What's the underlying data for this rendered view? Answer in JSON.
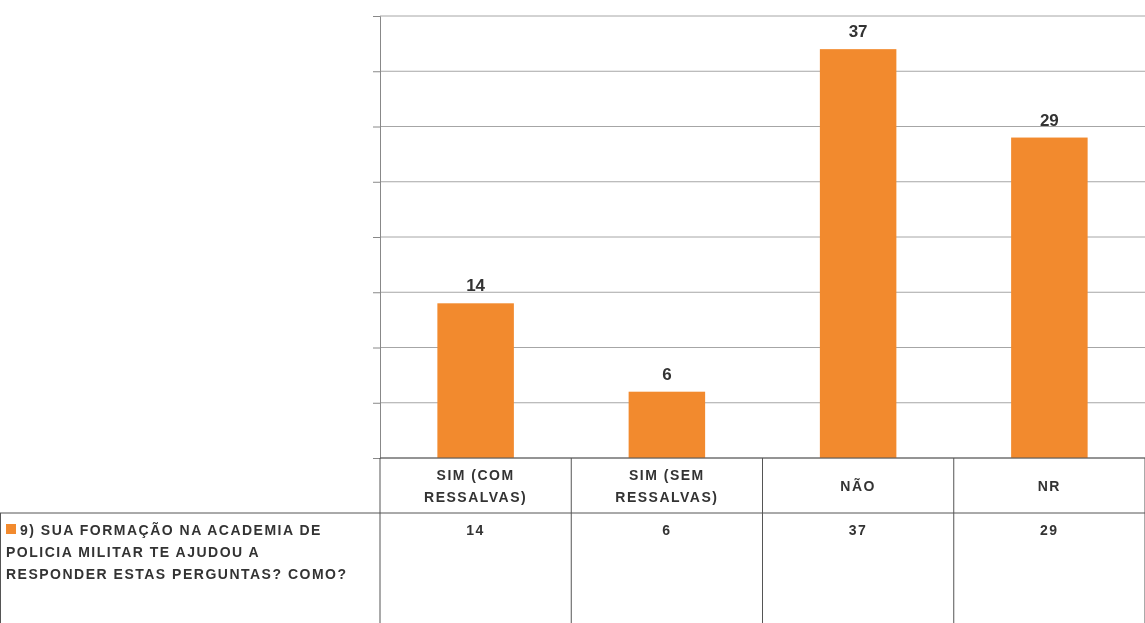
{
  "chart_data": {
    "type": "bar",
    "categories": [
      "SIM (COM RESSALVAS)",
      "SIM (SEM RESSALVAS)",
      "NÃO",
      "NR"
    ],
    "series": [
      {
        "name": "9) SUA FORMAÇÃO NA ACADEMIA DE POLICIA MILITAR TE AJUDOU A RESPONDER ESTAS PERGUNTAS? COMO?",
        "color": "#f28a2e",
        "values": [
          14,
          6,
          37,
          29
        ],
        "value_labels": [
          "14",
          "6",
          "37",
          "29"
        ]
      }
    ],
    "ylim": [
      0,
      40
    ],
    "yticks": [
      {
        "value": 0,
        "label": null
      },
      {
        "value": 5,
        "label": null
      },
      {
        "value": 10,
        "label": null
      },
      {
        "value": 15,
        "label": null
      },
      {
        "value": 20,
        "label": null
      },
      {
        "value": 25,
        "label": null
      },
      {
        "value": 30,
        "label": null
      },
      {
        "value": 35,
        "label": null
      },
      {
        "value": 40,
        "label": null
      }
    ],
    "annotations": [
      "14",
      "6",
      "37",
      "29"
    ],
    "grid": true,
    "legend": "bottom left",
    "tick_labels": "x"
  }
}
